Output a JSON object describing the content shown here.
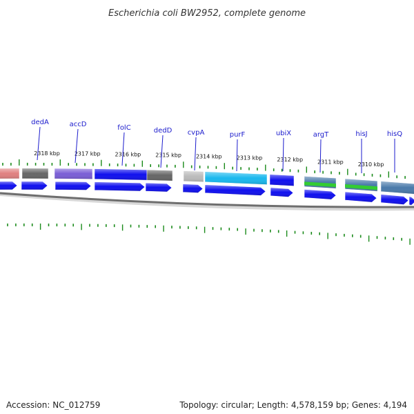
{
  "title": "Escherichia coli BW2952, complete genome",
  "accession": "Accession: NC_012759",
  "topology": "Topology: circular; Length: 4,578,159 bp; Genes: 4,194",
  "colors": {
    "label": "#1a1acc",
    "arrow": "#1010ee",
    "backbone": "#777777",
    "tick": "#1a8a1a"
  },
  "gene_labels": [
    "dedA",
    "accD",
    "folC",
    "dedD",
    "cvpA",
    "purF",
    "ubiX",
    "argT",
    "hisJ",
    "hisQ"
  ],
  "kbp_labels": [
    "2318 kbp",
    "2317 kbp",
    "2316 kbp",
    "2315 kbp",
    "2314 kbp",
    "2313 kbp",
    "2312 kbp",
    "2311 kbp",
    "2310 kbp"
  ],
  "feature_blocks": [
    {
      "kind": "gene-block",
      "color": "#e08080"
    },
    {
      "kind": "gene-block",
      "color": "#666666"
    },
    {
      "kind": "gene-block",
      "color": "#7a5ed6"
    },
    {
      "kind": "gene-block",
      "color": "#1010ee"
    },
    {
      "kind": "gene-block",
      "color": "#666666"
    },
    {
      "kind": "gene-block",
      "color": "#bbbbbb"
    },
    {
      "kind": "gene-block",
      "color": "#1ab8ee"
    },
    {
      "kind": "gene-block",
      "color": "#1010ee"
    },
    {
      "kind": "gene-block",
      "color": "#4a7aaa"
    },
    {
      "kind": "gene-block",
      "color": "#4a7aaa"
    },
    {
      "kind": "gene-block",
      "color": "#4a7aaa"
    }
  ],
  "cds_arrows": 14
}
